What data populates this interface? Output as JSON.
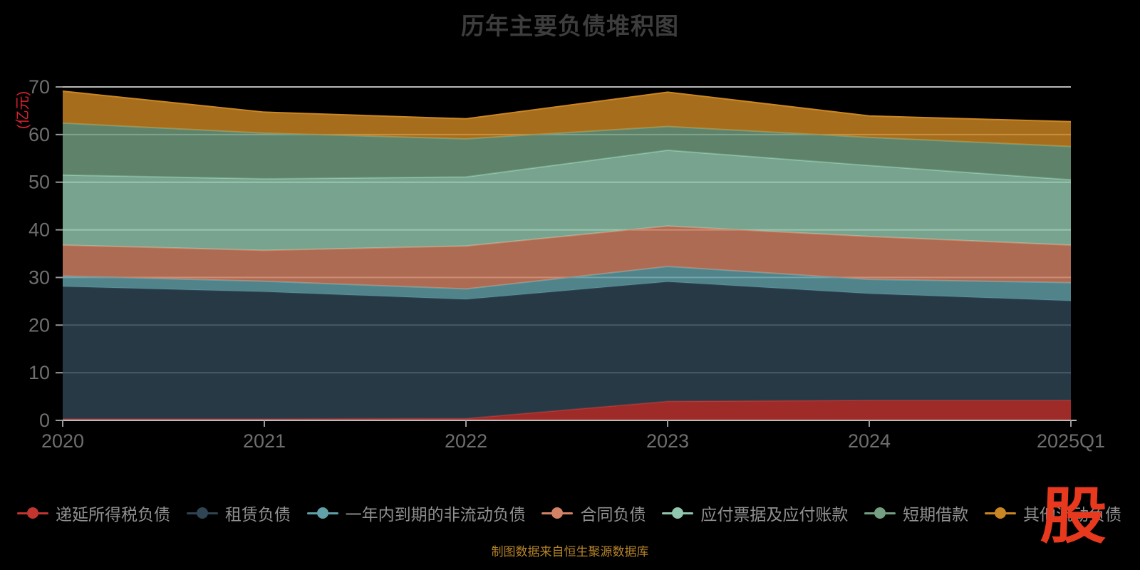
{
  "title": "历年主要负债堆积图",
  "source_note": "制图数据来自恒生聚源数据库",
  "logo_text": "股",
  "y_axis": {
    "unit_label": "(亿元)",
    "tick_labels": [
      "0",
      "10",
      "20",
      "30",
      "40",
      "50",
      "60",
      "70"
    ]
  },
  "x_axis": {
    "tick_labels": [
      "2020",
      "2021",
      "2022",
      "2023",
      "2024",
      "2025Q1"
    ]
  },
  "chart_data": {
    "type": "area",
    "stacked": true,
    "title": "历年主要负债堆积图",
    "categories": [
      "2020",
      "2021",
      "2022",
      "2023",
      "2024",
      "2025Q1"
    ],
    "series": [
      {
        "name": "递延所得税负债",
        "color": "#c23531",
        "values": [
          0.3,
          0.3,
          0.4,
          4.0,
          4.2,
          4.2
        ]
      },
      {
        "name": "租赁负债",
        "color": "#2f4554",
        "values": [
          27.8,
          26.7,
          25.0,
          25.1,
          22.4,
          20.9
        ]
      },
      {
        "name": "一年内到期的非流动负债",
        "color": "#61a0a8",
        "values": [
          2.2,
          2.2,
          2.2,
          3.2,
          3.0,
          3.8
        ]
      },
      {
        "name": "合同负债",
        "color": "#d48265",
        "values": [
          6.5,
          6.5,
          9.0,
          8.5,
          9.0,
          7.9
        ]
      },
      {
        "name": "应付票据及应付账款",
        "color": "#91c7ae",
        "values": [
          14.7,
          15.0,
          14.5,
          15.9,
          14.9,
          13.7
        ]
      },
      {
        "name": "短期借款",
        "color": "#749f83",
        "values": [
          10.9,
          9.6,
          8.0,
          5.0,
          5.9,
          7.0
        ]
      },
      {
        "name": "其他流动负债",
        "color": "#ca8622",
        "values": [
          6.7,
          4.4,
          4.2,
          7.2,
          4.5,
          5.2
        ]
      }
    ],
    "xlabel": "",
    "ylabel": "(亿元)",
    "ylim": [
      0,
      70
    ],
    "y_tick_interval": 10,
    "grid": true,
    "legend_position": "bottom"
  },
  "colors": {
    "background": "#000000",
    "title": "#3d3d3d",
    "axis_label": "#6e6e6e",
    "legend_text": "#909090",
    "unit_label": "#d9232e",
    "source_text": "#b5832a",
    "logo": "#e8391f",
    "gridline": "#e8e8e8"
  }
}
